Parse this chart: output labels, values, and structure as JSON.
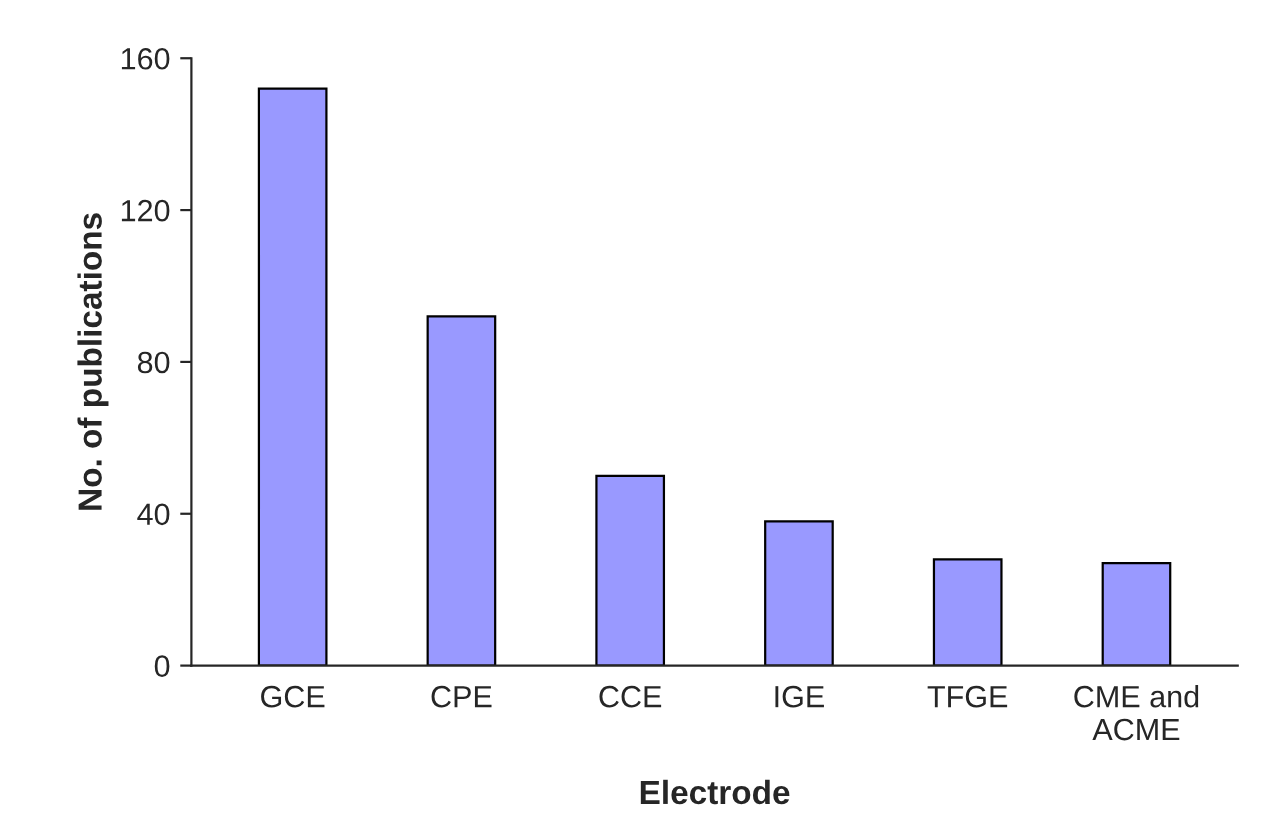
{
  "chart_data": {
    "type": "bar",
    "xlabel": "Electrode",
    "ylabel": "No. of publications",
    "categories": [
      "GCE",
      "CPE",
      "CCE",
      "IGE",
      "TFGE",
      "CME and\nACME"
    ],
    "values": [
      152,
      92,
      50,
      38,
      28,
      27
    ],
    "color": "#9999ff",
    "ylim": [
      0,
      160
    ],
    "yticks": [
      0,
      40,
      80,
      120,
      160
    ],
    "grid": false,
    "legend": false
  }
}
